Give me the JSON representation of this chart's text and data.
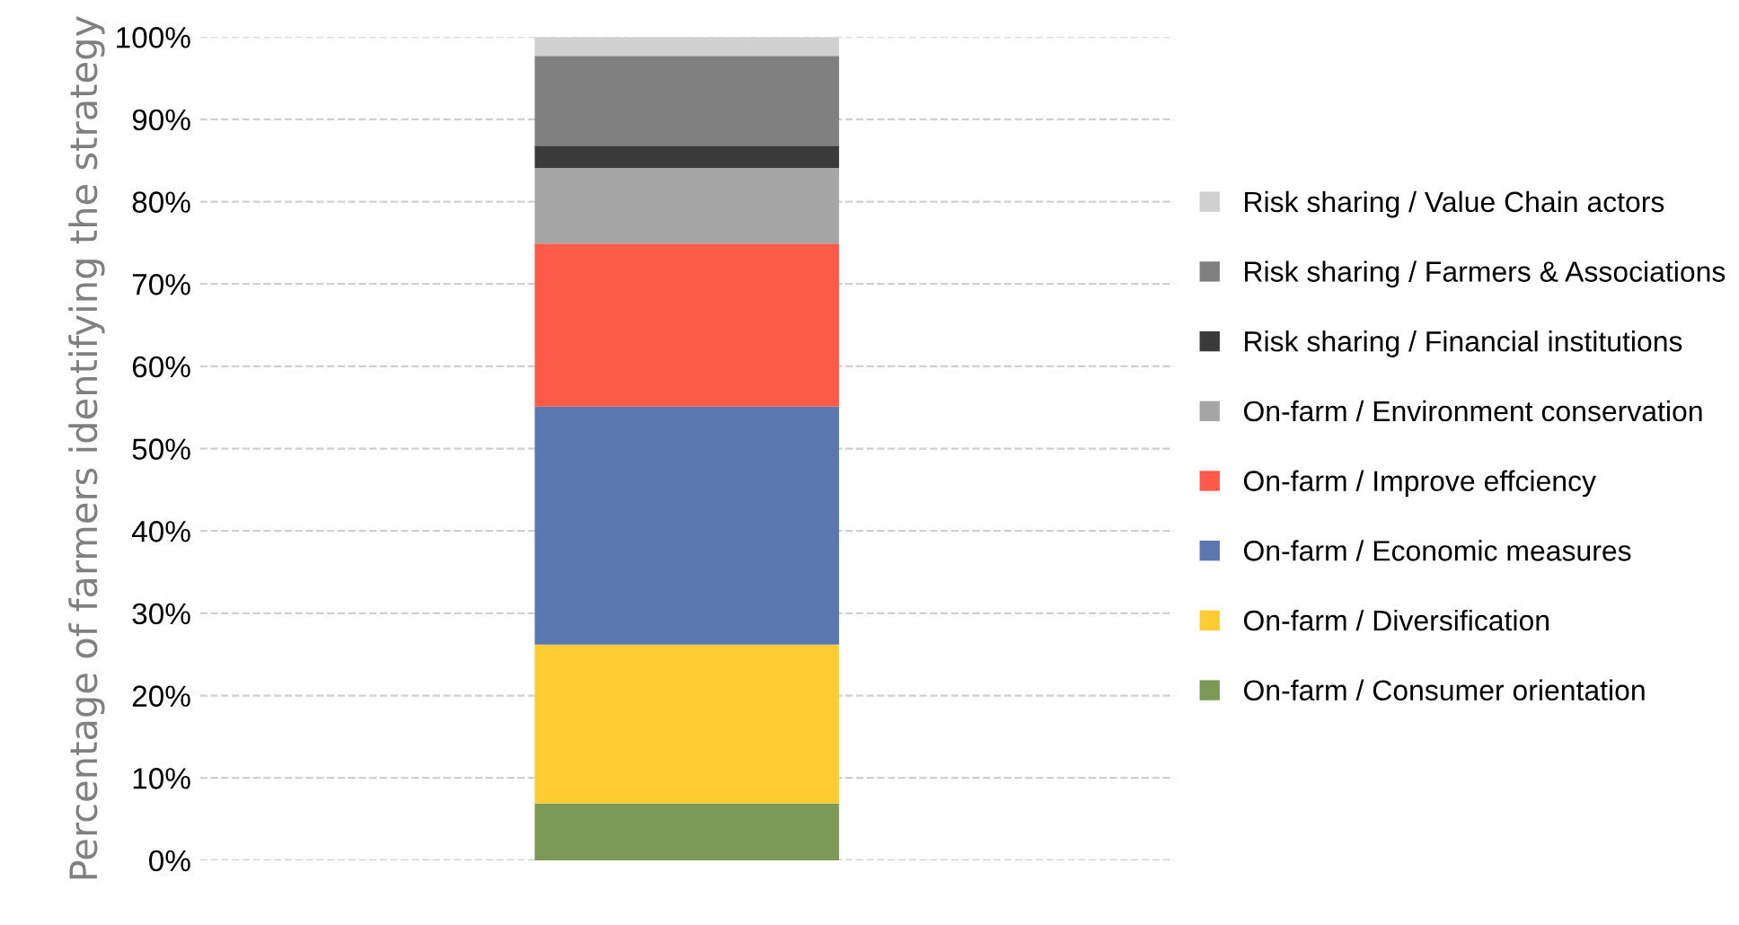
{
  "chart_data": {
    "type": "bar",
    "stacked": true,
    "ylabel": "Percentage of farmers identifying the strategy",
    "categories": [
      null
    ],
    "series": [
      {
        "name": "On-farm / Consumer orientation",
        "color": "#7a9a55",
        "values": [
          6.9
        ]
      },
      {
        "name": "On-farm / Diversification",
        "color": "#ffcc33",
        "values": [
          19.3
        ]
      },
      {
        "name": "On-farm / Economic measures",
        "color": "#5b77b0",
        "values": [
          28.9
        ]
      },
      {
        "name": "On-farm / Improve effciency",
        "color": "#ff5a4a",
        "values": [
          19.8
        ]
      },
      {
        "name": "On-farm / Environment conservation",
        "color": "#a6a6a6",
        "values": [
          9.2
        ]
      },
      {
        "name": "Risk sharing / Financial institutions",
        "color": "#3a3a3a",
        "values": [
          2.7
        ]
      },
      {
        "name": "Risk sharing / Farmers & Associations",
        "color": "#808080",
        "values": [
          10.9
        ]
      },
      {
        "name": "Risk sharing / Value Chain actors",
        "color": "#d0d0d0",
        "values": [
          2.3
        ]
      }
    ],
    "ylim": [
      0,
      100
    ],
    "yticks": [
      {
        "value": 0,
        "label": "0%"
      },
      {
        "value": 10,
        "label": "10%"
      },
      {
        "value": 20,
        "label": "20%"
      },
      {
        "value": 30,
        "label": "30%"
      },
      {
        "value": 40,
        "label": "40%"
      },
      {
        "value": 50,
        "label": "50%"
      },
      {
        "value": 60,
        "label": "60%"
      },
      {
        "value": 70,
        "label": "70%"
      },
      {
        "value": 80,
        "label": "80%"
      },
      {
        "value": 90,
        "label": "90%"
      },
      {
        "value": 100,
        "label": "100%"
      }
    ],
    "grid": "y",
    "legend": "right"
  }
}
